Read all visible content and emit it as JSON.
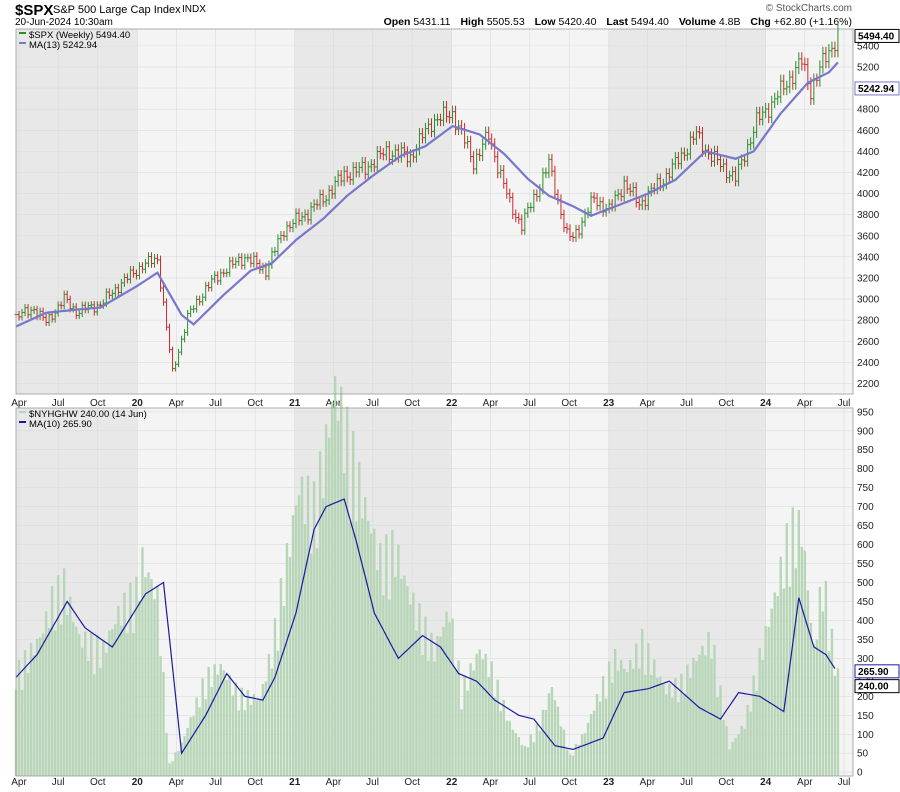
{
  "header": {
    "symbol": "$SPX",
    "name": "S&P 500 Large Cap Index",
    "exchange": "INDX",
    "datetime": "20-Jun-2024 10:30am",
    "brand": "© StockCharts.com",
    "open_label": "Open",
    "open": "5431.11",
    "high_label": "High",
    "high": "5505.53",
    "low_label": "Low",
    "low": "5420.40",
    "last_label": "Last",
    "last": "5494.40",
    "volume_label": "Volume",
    "volume": "4.8B",
    "chg_label": "Chg",
    "chg": "+62.80 (+1.16%)"
  },
  "colors": {
    "up": "#2e8b2e",
    "down": "#cc2a2a",
    "ma_price": "#7777cc",
    "ma_breadth": "#1a1aa0",
    "volume_bar": "#b7d6b7",
    "shade": "#e8e8e8",
    "panel_bg": "#f4f4f4"
  },
  "chart_data": [
    {
      "type": "line",
      "panel": "price",
      "legend": [
        "$SPX (Weekly) 5494.40",
        "MA(13) 5242.94"
      ],
      "last_tags": [
        "5494.40",
        "5242.94"
      ],
      "ylim": [
        2100,
        5560
      ],
      "yticks": [
        2200,
        2400,
        2600,
        2800,
        3000,
        3200,
        3400,
        3600,
        3800,
        4000,
        4200,
        4400,
        4600,
        4800,
        5000,
        5200,
        5400
      ],
      "xlim": [
        "2019-03-25",
        "2024-07-22"
      ],
      "x_ticks": [
        "Apr",
        "Jul",
        "Oct",
        "20",
        "Apr",
        "Jul",
        "Oct",
        "21",
        "Apr",
        "Jul",
        "Oct",
        "22",
        "Apr",
        "Jul",
        "Oct",
        "23",
        "Apr",
        "Jul",
        "Oct",
        "24",
        "Apr",
        "Jul"
      ],
      "series": [
        {
          "name": "$SPX (Weekly)",
          "x": [
            "2019-03-25",
            "2019-05-06",
            "2019-06-03",
            "2019-07-15",
            "2019-08-12",
            "2019-10-07",
            "2019-11-25",
            "2020-01-13",
            "2020-02-17",
            "2020-03-23",
            "2020-04-27",
            "2020-06-08",
            "2020-07-20",
            "2020-09-07",
            "2020-10-26",
            "2020-12-07",
            "2021-01-25",
            "2021-03-08",
            "2021-04-26",
            "2021-06-14",
            "2021-08-02",
            "2021-09-27",
            "2021-11-15",
            "2022-01-03",
            "2022-02-21",
            "2022-03-28",
            "2022-05-16",
            "2022-06-13",
            "2022-08-15",
            "2022-09-26",
            "2022-10-10",
            "2022-11-28",
            "2023-01-02",
            "2023-02-06",
            "2023-03-13",
            "2023-05-22",
            "2023-07-24",
            "2023-08-21",
            "2023-10-23",
            "2023-12-11",
            "2024-01-22",
            "2024-03-25",
            "2024-04-15",
            "2024-05-20",
            "2024-06-17"
          ],
          "values": [
            2830,
            2910,
            2780,
            3000,
            2880,
            2950,
            3150,
            3320,
            3380,
            2300,
            2830,
            3100,
            3270,
            3400,
            3270,
            3660,
            3800,
            3950,
            4180,
            4240,
            4400,
            4350,
            4680,
            4760,
            4300,
            4550,
            3900,
            3700,
            4280,
            3600,
            3580,
            3950,
            3840,
            4100,
            3900,
            4200,
            4560,
            4380,
            4140,
            4680,
            4890,
            5250,
            4980,
            5300,
            5494
          ]
        },
        {
          "name": "MA(13)",
          "x": [
            "2019-03-25",
            "2019-06-03",
            "2019-08-12",
            "2019-10-07",
            "2019-12-30",
            "2020-02-17",
            "2020-04-13",
            "2020-05-11",
            "2020-07-20",
            "2020-09-21",
            "2020-11-09",
            "2021-01-04",
            "2021-03-08",
            "2021-05-03",
            "2021-07-05",
            "2021-09-06",
            "2021-11-01",
            "2022-01-03",
            "2022-03-07",
            "2022-05-02",
            "2022-06-27",
            "2022-08-15",
            "2022-10-10",
            "2022-11-21",
            "2023-01-30",
            "2023-04-03",
            "2023-06-05",
            "2023-08-14",
            "2023-10-23",
            "2023-12-04",
            "2024-02-05",
            "2024-04-08",
            "2024-05-27",
            "2024-06-17"
          ],
          "values": [
            2740,
            2870,
            2900,
            2920,
            3120,
            3250,
            2850,
            2760,
            3040,
            3270,
            3340,
            3560,
            3760,
            3980,
            4180,
            4360,
            4450,
            4640,
            4560,
            4380,
            4140,
            3980,
            3880,
            3790,
            3900,
            4000,
            4130,
            4400,
            4330,
            4400,
            4760,
            5050,
            5150,
            5243
          ]
        }
      ]
    },
    {
      "type": "bar",
      "panel": "breadth",
      "legend": [
        "$NYHGHW 240.00 (14 Jun)",
        "MA(10) 265.90"
      ],
      "last_tags": [
        "265.90",
        "240.00"
      ],
      "ylim": [
        -10,
        960
      ],
      "yticks": [
        0,
        50,
        100,
        150,
        200,
        250,
        300,
        350,
        400,
        450,
        500,
        550,
        600,
        650,
        700,
        750,
        800,
        850,
        900,
        950
      ],
      "series": [
        {
          "name": "$NYHGHW",
          "x": [
            "2019-03-25",
            "2019-05-20",
            "2019-06-17",
            "2019-07-15",
            "2019-08-19",
            "2019-10-14",
            "2019-11-18",
            "2019-12-30",
            "2020-01-13",
            "2020-02-17",
            "2020-03-16",
            "2020-04-13",
            "2020-05-11",
            "2020-06-08",
            "2020-07-13",
            "2020-08-24",
            "2020-10-12",
            "2020-11-09",
            "2020-12-07",
            "2021-01-11",
            "2021-02-15",
            "2021-03-08",
            "2021-04-05",
            "2021-05-03",
            "2021-06-14",
            "2021-07-19",
            "2021-08-23",
            "2021-09-20",
            "2021-10-18",
            "2021-11-22",
            "2021-12-27",
            "2022-01-24",
            "2022-03-07",
            "2022-04-04",
            "2022-05-16",
            "2022-06-20",
            "2022-07-25",
            "2022-08-22",
            "2022-10-03",
            "2022-11-07",
            "2022-12-12",
            "2023-01-16",
            "2023-02-13",
            "2023-03-20",
            "2023-05-15",
            "2023-06-19",
            "2023-07-24",
            "2023-08-28",
            "2023-10-09",
            "2023-11-13",
            "2023-12-18",
            "2024-01-22",
            "2024-02-26",
            "2024-03-25",
            "2024-04-22",
            "2024-05-13",
            "2024-06-14"
          ],
          "values": [
            240,
            330,
            420,
            460,
            330,
            300,
            390,
            440,
            520,
            430,
            20,
            70,
            150,
            230,
            260,
            190,
            180,
            300,
            480,
            700,
            650,
            760,
            950,
            820,
            650,
            520,
            550,
            450,
            380,
            300,
            400,
            200,
            300,
            250,
            120,
            60,
            120,
            210,
            40,
            100,
            200,
            280,
            250,
            320,
            200,
            220,
            280,
            330,
            60,
            120,
            280,
            430,
            590,
            600,
            300,
            480,
            240
          ]
        },
        {
          "name": "MA(10)",
          "x": [
            "2019-03-25",
            "2019-05-13",
            "2019-07-22",
            "2019-09-02",
            "2019-11-04",
            "2020-01-20",
            "2020-03-02",
            "2020-04-13",
            "2020-06-08",
            "2020-07-27",
            "2020-09-07",
            "2020-10-19",
            "2020-11-16",
            "2021-01-04",
            "2021-02-15",
            "2021-03-15",
            "2021-04-26",
            "2021-05-24",
            "2021-07-05",
            "2021-08-30",
            "2021-10-25",
            "2021-12-06",
            "2022-01-17",
            "2022-02-28",
            "2022-04-11",
            "2022-06-06",
            "2022-07-11",
            "2022-08-29",
            "2022-10-10",
            "2022-12-19",
            "2023-02-06",
            "2023-04-03",
            "2023-05-22",
            "2023-07-31",
            "2023-09-18",
            "2023-10-30",
            "2023-12-18",
            "2024-02-12",
            "2024-03-18",
            "2024-04-22",
            "2024-05-20",
            "2024-06-14"
          ],
          "values": [
            250,
            310,
            450,
            380,
            330,
            470,
            500,
            50,
            150,
            260,
            200,
            190,
            250,
            420,
            640,
            700,
            720,
            610,
            420,
            300,
            360,
            330,
            260,
            240,
            190,
            150,
            140,
            70,
            60,
            90,
            210,
            220,
            240,
            170,
            140,
            210,
            200,
            160,
            460,
            330,
            310,
            266
          ]
        }
      ]
    }
  ]
}
